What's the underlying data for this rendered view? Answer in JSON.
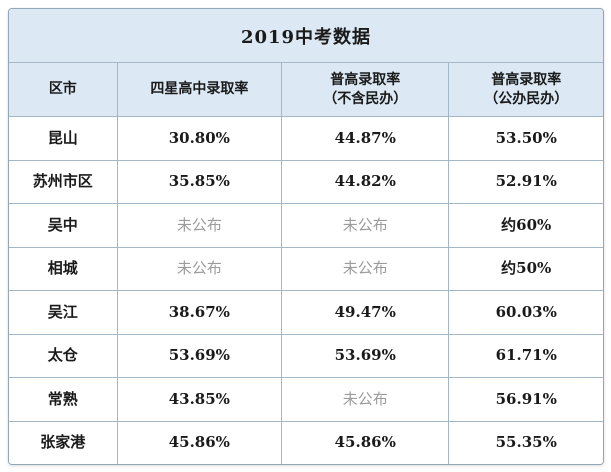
{
  "chart_data": {
    "type": "table",
    "title": "2019中考数据",
    "columns": [
      "区市",
      "四星高中录取率",
      "普高录取率\n（不含民办）",
      "普高录取率\n（公办民办）"
    ],
    "rows": [
      {
        "district": "昆山",
        "values": [
          "30.80%",
          "44.87%",
          "53.50%"
        ]
      },
      {
        "district": "苏州市区",
        "values": [
          "35.85%",
          "44.82%",
          "52.91%"
        ]
      },
      {
        "district": "吴中",
        "values": [
          "未公布",
          "未公布",
          "约60%"
        ]
      },
      {
        "district": "相城",
        "values": [
          "未公布",
          "未公布",
          "约50%"
        ]
      },
      {
        "district": "吴江",
        "values": [
          "38.67%",
          "49.47%",
          "60.03%"
        ]
      },
      {
        "district": "太仓",
        "values": [
          "53.69%",
          "53.69%",
          "61.71%"
        ]
      },
      {
        "district": "常熟",
        "values": [
          "43.85%",
          "未公布",
          "56.91%"
        ]
      },
      {
        "district": "张家港",
        "values": [
          "45.86%",
          "45.86%",
          "55.35%"
        ]
      }
    ],
    "not_published_value": "未公布"
  },
  "colors": {
    "header_bg": "#dce9f5",
    "grid_border": "#a3b7c6",
    "outer_border": "#93a7b6",
    "text": "#1a1a1a",
    "muted_text": "#9c9c9c",
    "page_bg": "#ffffff"
  }
}
